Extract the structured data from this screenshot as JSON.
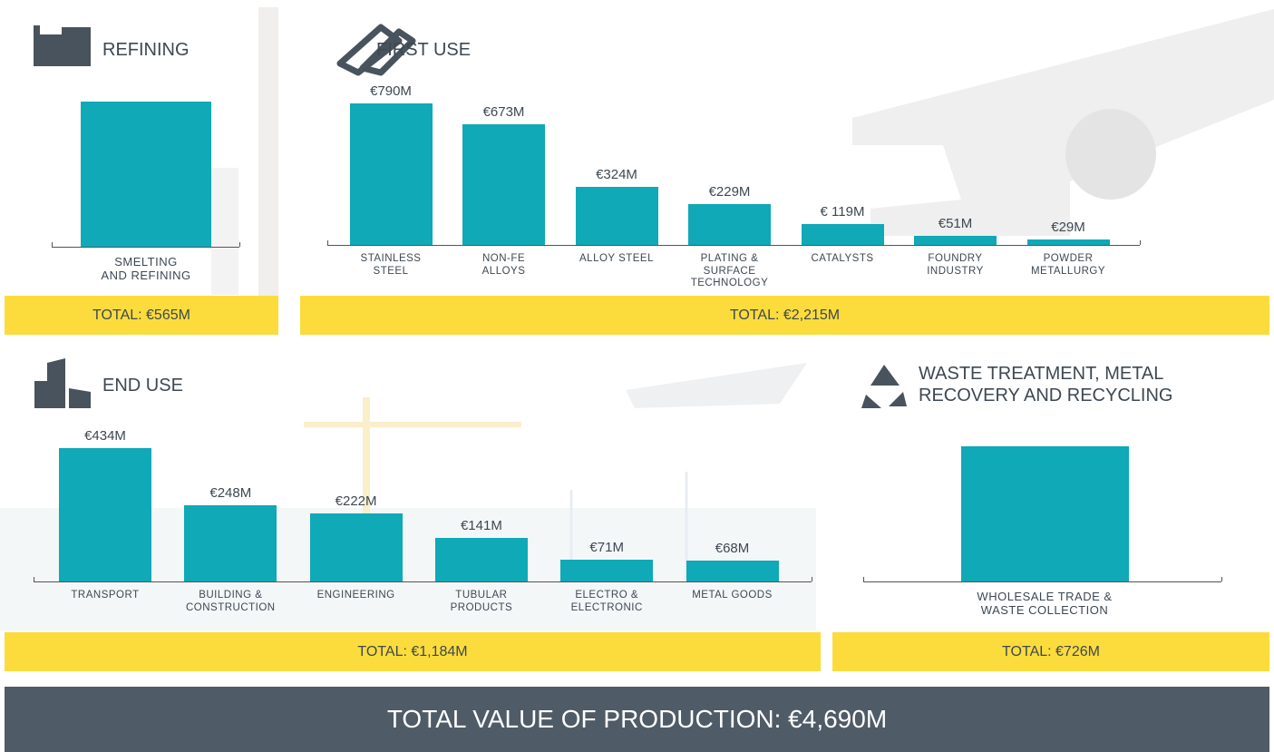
{
  "chart_data": [
    {
      "type": "bar",
      "title": "REFINING",
      "categories": [
        "SMELTING AND REFINING"
      ],
      "values": [
        565
      ],
      "color": "#0fa9b7",
      "total": "TOTAL: €565M"
    },
    {
      "type": "bar",
      "title": "FIRST USE",
      "categories": [
        "STAINLESS STEEL",
        "NON-FE ALLOYS",
        "ALLOY STEEL",
        "PLATING & SURFACE TECHNOLOGY",
        "CATALYSTS",
        "FOUNDRY INDUSTRY",
        "POWDER METALLURGY"
      ],
      "values": [
        790,
        673,
        324,
        229,
        119,
        51,
        29
      ],
      "value_labels": [
        "€790M",
        "€673M",
        "€324M",
        "€229M",
        "€ 119M",
        "€51M",
        "€29M"
      ],
      "color": "#0fa9b7",
      "total": "TOTAL: €2,215M"
    },
    {
      "type": "bar",
      "title": "END USE",
      "categories": [
        "TRANSPORT",
        "BUILDING & CONSTRUCTION",
        "ENGINEERING",
        "TUBULAR PRODUCTS",
        "ELECTRO & ELECTRONIC",
        "METAL GOODS"
      ],
      "values": [
        434,
        248,
        222,
        141,
        71,
        68
      ],
      "value_labels": [
        "€434M",
        "€248M",
        "€222M",
        "€141M",
        "€71M",
        "€68M"
      ],
      "color": "#0fa9b7",
      "total": "TOTAL: €1,184M"
    },
    {
      "type": "bar",
      "title": "WASTE TREATMENT, METAL RECOVERY AND RECYCLING",
      "categories": [
        "WHOLESALE TRADE & WASTE COLLECTION"
      ],
      "values": [
        726
      ],
      "color": "#0fa9b7",
      "total": "TOTAL: €726M"
    }
  ],
  "footer": "TOTAL VALUE OF PRODUCTION: €4,690M"
}
